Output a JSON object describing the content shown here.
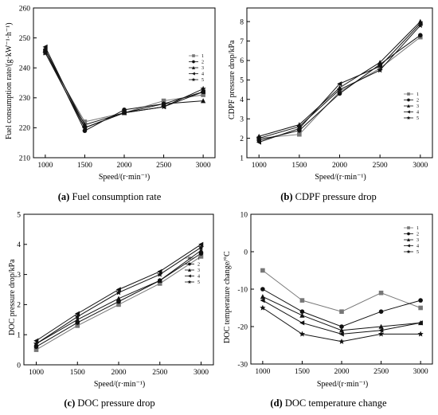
{
  "chart_data": [
    {
      "type": "line",
      "panel_id": "a",
      "caption_letter": "(a)",
      "caption_text": "Fuel consumption rate",
      "xlabel": "Speed/(r·min⁻¹)",
      "ylabel": "Fuel consumption rate/(g·kW⁻¹·h⁻¹)",
      "x": [
        1000,
        1500,
        2000,
        2500,
        3000
      ],
      "xlim": [
        850,
        3150
      ],
      "ylim": [
        210,
        260
      ],
      "yticks": [
        210,
        220,
        230,
        240,
        250,
        260
      ],
      "grid": false,
      "legend_position": "right",
      "series": [
        {
          "name": "1",
          "marker": "square",
          "values": [
            245,
            222,
            225,
            229,
            231
          ]
        },
        {
          "name": "2",
          "marker": "circle",
          "values": [
            246,
            219,
            226,
            228,
            232
          ]
        },
        {
          "name": "3",
          "marker": "triangle-up",
          "values": [
            246,
            221,
            225,
            228,
            229
          ]
        },
        {
          "name": "4",
          "marker": "triangle-left",
          "values": [
            247,
            220,
            225,
            227,
            232
          ]
        },
        {
          "name": "5",
          "marker": "star",
          "values": [
            245,
            220,
            225,
            227,
            233
          ]
        }
      ]
    },
    {
      "type": "line",
      "panel_id": "b",
      "caption_letter": "(b)",
      "caption_text": "CDPF pressure drop",
      "xlabel": "Speed/(r·min⁻¹)",
      "ylabel": "CDPF pressure drop/kPa",
      "x": [
        1000,
        1500,
        2000,
        2500,
        3000
      ],
      "xlim": [
        850,
        3150
      ],
      "ylim": [
        1,
        8.7
      ],
      "yticks": [
        1,
        2,
        3,
        4,
        5,
        6,
        7,
        8
      ],
      "grid": false,
      "legend_position": "right",
      "series": [
        {
          "name": "1",
          "marker": "square",
          "values": [
            2.0,
            2.2,
            4.4,
            5.6,
            7.2
          ]
        },
        {
          "name": "2",
          "marker": "circle",
          "values": [
            1.9,
            2.4,
            4.3,
            5.8,
            7.3
          ]
        },
        {
          "name": "3",
          "marker": "triangle-up",
          "values": [
            2.1,
            2.7,
            4.6,
            5.9,
            8.0
          ]
        },
        {
          "name": "4",
          "marker": "triangle-left",
          "values": [
            1.8,
            2.5,
            4.8,
            5.7,
            7.9
          ]
        },
        {
          "name": "5",
          "marker": "star",
          "values": [
            2.0,
            2.6,
            4.5,
            5.5,
            7.8
          ]
        }
      ]
    },
    {
      "type": "line",
      "panel_id": "c",
      "caption_letter": "(c)",
      "caption_text": "DOC pressure drop",
      "xlabel": "Speed/(r·min⁻¹)",
      "ylabel": "DOC pressure drop/kPa",
      "x": [
        1000,
        1500,
        2000,
        2500,
        3000
      ],
      "xlim": [
        850,
        3150
      ],
      "ylim": [
        0,
        5
      ],
      "yticks": [
        0,
        1,
        2,
        3,
        4,
        5
      ],
      "grid": false,
      "legend_position": "right",
      "series": [
        {
          "name": "1",
          "marker": "square",
          "values": [
            0.5,
            1.3,
            2.0,
            2.7,
            3.6
          ]
        },
        {
          "name": "2",
          "marker": "circle",
          "values": [
            0.6,
            1.4,
            2.1,
            2.8,
            3.7
          ]
        },
        {
          "name": "3",
          "marker": "triangle-up",
          "values": [
            0.7,
            1.5,
            2.2,
            2.8,
            3.8
          ]
        },
        {
          "name": "4",
          "marker": "triangle-left",
          "values": [
            0.8,
            1.7,
            2.5,
            3.1,
            4.0
          ]
        },
        {
          "name": "5",
          "marker": "star",
          "values": [
            0.7,
            1.6,
            2.4,
            3.0,
            3.9
          ]
        }
      ]
    },
    {
      "type": "line",
      "panel_id": "d",
      "caption_letter": "(d)",
      "caption_text": "DOC temperature change",
      "xlabel": "Speed/(r·min⁻¹)",
      "ylabel": "DOC temperature change/°C",
      "x": [
        1000,
        1500,
        2000,
        2500,
        3000
      ],
      "xlim": [
        850,
        3150
      ],
      "ylim": [
        -30,
        10
      ],
      "yticks": [
        -30,
        -20,
        -10,
        0,
        10
      ],
      "grid": false,
      "legend_position": "top-right",
      "series": [
        {
          "name": "1",
          "marker": "square",
          "values": [
            -5,
            -13,
            -16,
            -11,
            -15
          ]
        },
        {
          "name": "2",
          "marker": "circle",
          "values": [
            -10,
            -16,
            -20,
            -16,
            -13
          ]
        },
        {
          "name": "3",
          "marker": "triangle-up",
          "values": [
            -12,
            -17,
            -21,
            -20,
            -19
          ]
        },
        {
          "name": "4",
          "marker": "triangle-left",
          "values": [
            -13,
            -19,
            -22,
            -21,
            -19
          ]
        },
        {
          "name": "5",
          "marker": "star",
          "values": [
            -15,
            -22,
            -24,
            -22,
            -22
          ]
        }
      ]
    }
  ]
}
